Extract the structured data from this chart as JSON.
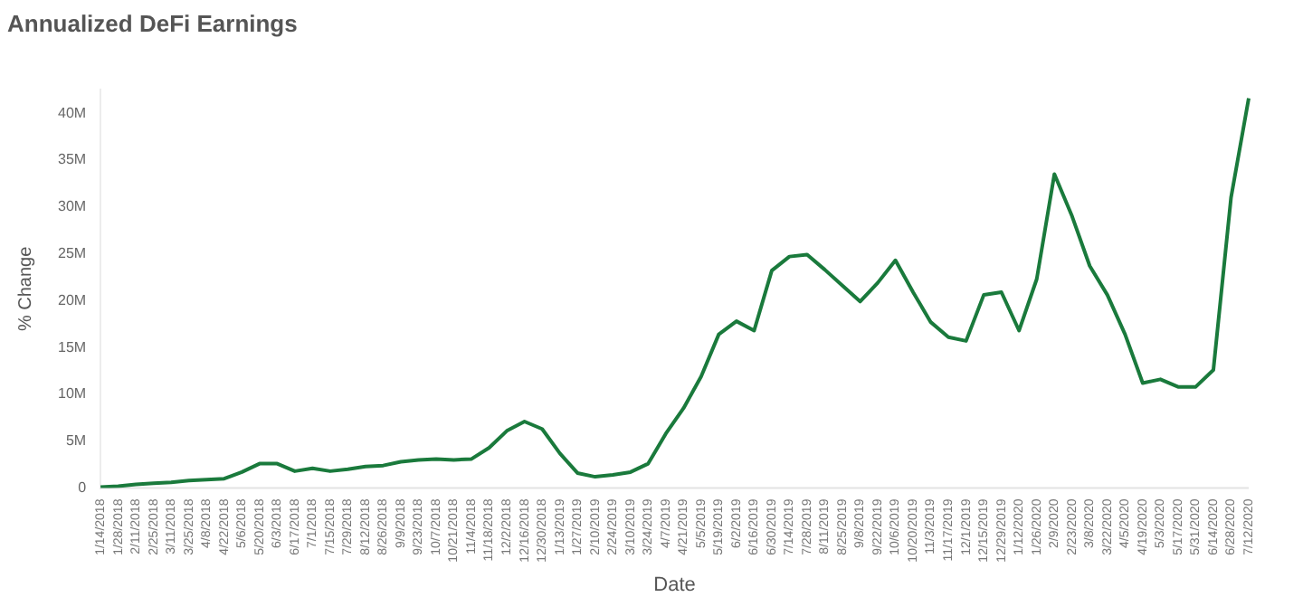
{
  "chart_data": {
    "type": "line",
    "title": "Annualized DeFi Earnings",
    "xlabel": "Date",
    "ylabel": "% Change",
    "categories": [
      "1/14/2018",
      "1/28/2018",
      "2/11/2018",
      "2/25/2018",
      "3/11/2018",
      "3/25/2018",
      "4/8/2018",
      "4/22/2018",
      "5/6/2018",
      "5/20/2018",
      "6/3/2018",
      "6/17/2018",
      "7/1/2018",
      "7/15/2018",
      "7/29/2018",
      "8/12/2018",
      "8/26/2018",
      "9/9/2018",
      "9/23/2018",
      "10/7/2018",
      "10/21/2018",
      "11/4/2018",
      "11/18/2018",
      "12/2/2018",
      "12/16/2018",
      "12/30/2018",
      "1/13/2019",
      "1/27/2019",
      "2/10/2019",
      "2/24/2019",
      "3/10/2019",
      "3/24/2019",
      "4/7/2019",
      "4/21/2019",
      "5/5/2019",
      "5/19/2019",
      "6/2/2019",
      "6/16/2019",
      "6/30/2019",
      "7/14/2019",
      "7/28/2019",
      "8/11/2019",
      "8/25/2019",
      "9/8/2019",
      "9/22/2019",
      "10/6/2019",
      "10/20/2019",
      "11/3/2019",
      "11/17/2019",
      "12/1/2019",
      "12/15/2019",
      "12/29/2019",
      "1/12/2020",
      "1/26/2020",
      "2/9/2020",
      "2/23/2020",
      "3/8/2020",
      "3/22/2020",
      "4/5/2020",
      "4/19/2020",
      "5/3/2020",
      "5/17/2020",
      "5/31/2020",
      "6/14/2020",
      "6/28/2020",
      "7/12/2020"
    ],
    "series": [
      {
        "color": "#1a7a3c",
        "values": [
          100000,
          200000,
          400000,
          500000,
          600000,
          800000,
          900000,
          1000000,
          1700000,
          2600000,
          2600000,
          1800000,
          2100000,
          1800000,
          2000000,
          2300000,
          2400000,
          2800000,
          3000000,
          3100000,
          3000000,
          3100000,
          4300000,
          6100000,
          7100000,
          6300000,
          3700000,
          1600000,
          1200000,
          1400000,
          1700000,
          2600000,
          5800000,
          8500000,
          11900000,
          16400000,
          17800000,
          16800000,
          23200000,
          24700000,
          24900000,
          23300000,
          21600000,
          19900000,
          21900000,
          24300000,
          20900000,
          17700000,
          16100000,
          15700000,
          20600000,
          20900000,
          16800000,
          22300000,
          33500000,
          29000000,
          23700000,
          20600000,
          16400000,
          11200000,
          11600000,
          10800000,
          10800000,
          12600000,
          31000000,
          41600000
        ]
      }
    ],
    "ylim": [
      0,
      42500000
    ],
    "yticks": [
      {
        "value": 0,
        "label": "0"
      },
      {
        "value": 5000000,
        "label": "5M"
      },
      {
        "value": 10000000,
        "label": "10M"
      },
      {
        "value": 15000000,
        "label": "15M"
      },
      {
        "value": 20000000,
        "label": "20M"
      },
      {
        "value": 25000000,
        "label": "25M"
      },
      {
        "value": 30000000,
        "label": "30M"
      },
      {
        "value": 35000000,
        "label": "35M"
      },
      {
        "value": 40000000,
        "label": "40M"
      }
    ],
    "grid": false,
    "legend": false,
    "marker": "none",
    "line_style": "solid"
  }
}
